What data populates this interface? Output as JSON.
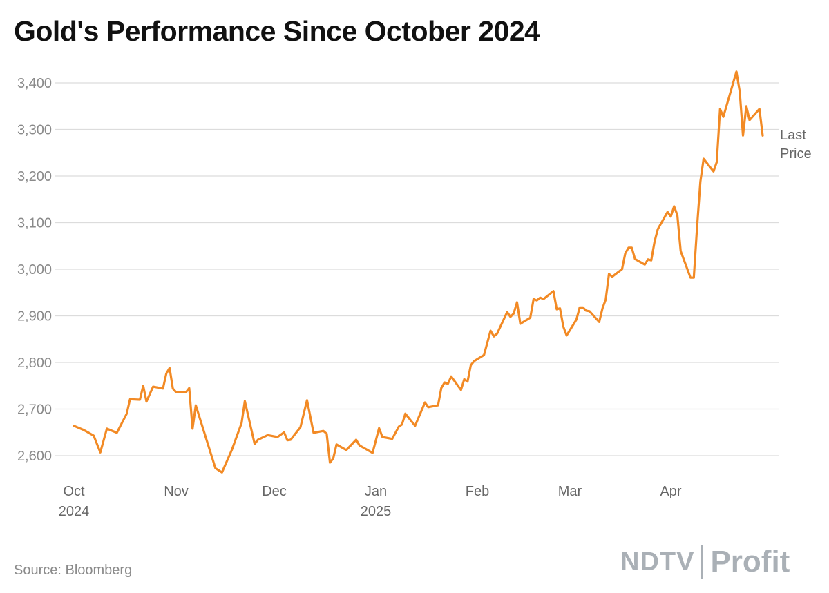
{
  "chart_data": {
    "type": "line",
    "title": "Gold's Performance Since October 2024",
    "xlabel": "",
    "ylabel": "",
    "ylim": [
      2600,
      3400
    ],
    "yticks": [
      2600,
      2700,
      2800,
      2900,
      3000,
      3100,
      3200,
      3300,
      3400
    ],
    "ytick_labels": [
      "2,600",
      "2,700",
      "2,800",
      "2,900",
      "3,000",
      "3,100",
      "3,200",
      "3,300",
      "3,400"
    ],
    "xticks": [
      {
        "date": "2024-10-01",
        "label": "Oct",
        "sublabel": "2024"
      },
      {
        "date": "2024-11-01",
        "label": "Nov",
        "sublabel": ""
      },
      {
        "date": "2024-12-01",
        "label": "Dec",
        "sublabel": ""
      },
      {
        "date": "2025-01-01",
        "label": "Jan",
        "sublabel": "2025"
      },
      {
        "date": "2025-02-01",
        "label": "Feb",
        "sublabel": ""
      },
      {
        "date": "2025-03-01",
        "label": "Mar",
        "sublabel": ""
      },
      {
        "date": "2025-04-01",
        "label": "Apr",
        "sublabel": ""
      }
    ],
    "grid": true,
    "line_color": "#f28a25",
    "series": [
      {
        "name": "Last Price",
        "points": [
          [
            "2024-10-01",
            2664
          ],
          [
            "2024-10-04",
            2655
          ],
          [
            "2024-10-07",
            2643
          ],
          [
            "2024-10-09",
            2607
          ],
          [
            "2024-10-11",
            2658
          ],
          [
            "2024-10-14",
            2649
          ],
          [
            "2024-10-17",
            2690
          ],
          [
            "2024-10-18",
            2721
          ],
          [
            "2024-10-21",
            2720
          ],
          [
            "2024-10-22",
            2750
          ],
          [
            "2024-10-23",
            2716
          ],
          [
            "2024-10-25",
            2748
          ],
          [
            "2024-10-28",
            2744
          ],
          [
            "2024-10-29",
            2776
          ],
          [
            "2024-10-30",
            2788
          ],
          [
            "2024-10-31",
            2744
          ],
          [
            "2024-11-01",
            2736
          ],
          [
            "2024-11-04",
            2736
          ],
          [
            "2024-11-05",
            2745
          ],
          [
            "2024-11-06",
            2658
          ],
          [
            "2024-11-07",
            2708
          ],
          [
            "2024-11-13",
            2573
          ],
          [
            "2024-11-15",
            2564
          ],
          [
            "2024-11-18",
            2612
          ],
          [
            "2024-11-21",
            2670
          ],
          [
            "2024-11-22",
            2717
          ],
          [
            "2024-11-25",
            2625
          ],
          [
            "2024-11-26",
            2634
          ],
          [
            "2024-11-29",
            2644
          ],
          [
            "2024-12-02",
            2640
          ],
          [
            "2024-12-04",
            2650
          ],
          [
            "2024-12-05",
            2633
          ],
          [
            "2024-12-06",
            2634
          ],
          [
            "2024-12-09",
            2661
          ],
          [
            "2024-12-11",
            2719
          ],
          [
            "2024-12-13",
            2649
          ],
          [
            "2024-12-16",
            2653
          ],
          [
            "2024-12-17",
            2647
          ],
          [
            "2024-12-18",
            2585
          ],
          [
            "2024-12-19",
            2594
          ],
          [
            "2024-12-20",
            2624
          ],
          [
            "2024-12-23",
            2612
          ],
          [
            "2024-12-26",
            2634
          ],
          [
            "2024-12-27",
            2622
          ],
          [
            "2024-12-31",
            2606
          ],
          [
            "2025-01-02",
            2659
          ],
          [
            "2025-01-03",
            2640
          ],
          [
            "2025-01-06",
            2636
          ],
          [
            "2025-01-08",
            2662
          ],
          [
            "2025-01-09",
            2667
          ],
          [
            "2025-01-10",
            2690
          ],
          [
            "2025-01-13",
            2664
          ],
          [
            "2025-01-16",
            2714
          ],
          [
            "2025-01-17",
            2704
          ],
          [
            "2025-01-20",
            2708
          ],
          [
            "2025-01-21",
            2745
          ],
          [
            "2025-01-22",
            2757
          ],
          [
            "2025-01-23",
            2754
          ],
          [
            "2025-01-24",
            2770
          ],
          [
            "2025-01-27",
            2741
          ],
          [
            "2025-01-28",
            2764
          ],
          [
            "2025-01-29",
            2759
          ],
          [
            "2025-01-30",
            2794
          ],
          [
            "2025-01-31",
            2803
          ],
          [
            "2025-02-03",
            2816
          ],
          [
            "2025-02-05",
            2868
          ],
          [
            "2025-02-06",
            2856
          ],
          [
            "2025-02-07",
            2862
          ],
          [
            "2025-02-10",
            2908
          ],
          [
            "2025-02-11",
            2898
          ],
          [
            "2025-02-12",
            2905
          ],
          [
            "2025-02-13",
            2929
          ],
          [
            "2025-02-14",
            2883
          ],
          [
            "2025-02-17",
            2896
          ],
          [
            "2025-02-18",
            2936
          ],
          [
            "2025-02-19",
            2933
          ],
          [
            "2025-02-20",
            2939
          ],
          [
            "2025-02-21",
            2936
          ],
          [
            "2025-02-24",
            2953
          ],
          [
            "2025-02-25",
            2914
          ],
          [
            "2025-02-26",
            2916
          ],
          [
            "2025-02-27",
            2877
          ],
          [
            "2025-02-28",
            2858
          ],
          [
            "2025-03-03",
            2892
          ],
          [
            "2025-03-04",
            2918
          ],
          [
            "2025-03-05",
            2918
          ],
          [
            "2025-03-06",
            2911
          ],
          [
            "2025-03-07",
            2910
          ],
          [
            "2025-03-10",
            2887
          ],
          [
            "2025-03-11",
            2916
          ],
          [
            "2025-03-12",
            2935
          ],
          [
            "2025-03-13",
            2990
          ],
          [
            "2025-03-14",
            2984
          ],
          [
            "2025-03-17",
            3000
          ],
          [
            "2025-03-18",
            3034
          ],
          [
            "2025-03-19",
            3046
          ],
          [
            "2025-03-20",
            3046
          ],
          [
            "2025-03-21",
            3022
          ],
          [
            "2025-03-24",
            3010
          ],
          [
            "2025-03-25",
            3021
          ],
          [
            "2025-03-26",
            3019
          ],
          [
            "2025-03-27",
            3059
          ],
          [
            "2025-03-28",
            3086
          ],
          [
            "2025-03-31",
            3123
          ],
          [
            "2025-04-01",
            3113
          ],
          [
            "2025-04-02",
            3135
          ],
          [
            "2025-04-03",
            3116
          ],
          [
            "2025-04-04",
            3039
          ],
          [
            "2025-04-07",
            2982
          ],
          [
            "2025-04-08",
            2982
          ],
          [
            "2025-04-09",
            3090
          ],
          [
            "2025-04-10",
            3188
          ],
          [
            "2025-04-11",
            3237
          ],
          [
            "2025-04-14",
            3210
          ],
          [
            "2025-04-15",
            3230
          ],
          [
            "2025-04-16",
            3344
          ],
          [
            "2025-04-17",
            3327
          ],
          [
            "2025-04-21",
            3424
          ],
          [
            "2025-04-22",
            3381
          ],
          [
            "2025-04-23",
            3287
          ],
          [
            "2025-04-24",
            3350
          ],
          [
            "2025-04-25",
            3320
          ],
          [
            "2025-04-28",
            3344
          ],
          [
            "2025-04-29",
            3287
          ]
        ]
      }
    ],
    "end_label": [
      "Last",
      "Price"
    ]
  },
  "footer": {
    "source": "Source: Bloomberg",
    "logo_text": [
      "NDTV",
      "Profit"
    ]
  }
}
